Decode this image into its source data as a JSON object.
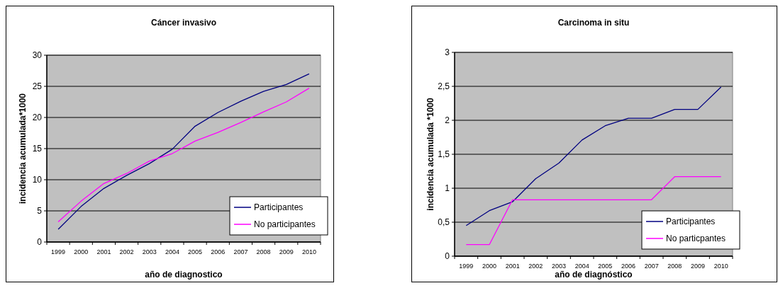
{
  "chart_data": [
    {
      "type": "line",
      "title": "Cáncer invasivo",
      "xlabel": "año de diagnostico",
      "ylabel": "incidencia acumulada*1000",
      "categories": [
        "1999",
        "2000",
        "2001",
        "2002",
        "2003",
        "2004",
        "2005",
        "2006",
        "2007",
        "2008",
        "2009",
        "2010"
      ],
      "series": [
        {
          "name": "Participantes",
          "color": "#000080",
          "values": [
            2.05,
            5.7,
            8.6,
            10.7,
            12.6,
            14.9,
            18.6,
            20.8,
            22.6,
            24.2,
            25.3,
            27.0
          ]
        },
        {
          "name": "No participantes",
          "color": "#ff00ff",
          "values": [
            3.25,
            6.55,
            9.4,
            11.0,
            13.0,
            14.2,
            16.2,
            17.6,
            19.2,
            20.9,
            22.5,
            24.7
          ]
        }
      ],
      "ylim": [
        0,
        30
      ],
      "yticks": [
        0,
        5,
        10,
        15,
        20,
        25,
        30
      ],
      "grid": "y",
      "legend": "bottom right",
      "marker": "none"
    },
    {
      "type": "line",
      "title": "Carcinoma in situ",
      "xlabel": "año de diagnóstico",
      "ylabel": "incidencia acumulada *1000",
      "categories": [
        "1999",
        "2000",
        "2001",
        "2002",
        "2003",
        "2004",
        "2005",
        "2006",
        "2007",
        "2008",
        "2009",
        "2010"
      ],
      "series": [
        {
          "name": "Participantes",
          "color": "#000080",
          "values": [
            0.45,
            0.67,
            0.8,
            1.14,
            1.37,
            1.71,
            1.92,
            2.03,
            2.03,
            2.16,
            2.16,
            2.49
          ]
        },
        {
          "name": "No particpantes",
          "color": "#ff00ff",
          "values": [
            0.17,
            0.17,
            0.83,
            0.83,
            0.83,
            0.83,
            0.83,
            0.83,
            0.83,
            1.17,
            1.17,
            1.17
          ]
        }
      ],
      "ylim": [
        0,
        3
      ],
      "yticks": [
        0,
        {
          "value": 0.5,
          "label": "0,5"
        },
        1,
        {
          "value": 1.5,
          "label": "1,5"
        },
        2,
        {
          "value": 2.5,
          "label": "2,5"
        },
        3
      ],
      "grid": "y",
      "legend": "bottom right",
      "marker": "none"
    }
  ]
}
